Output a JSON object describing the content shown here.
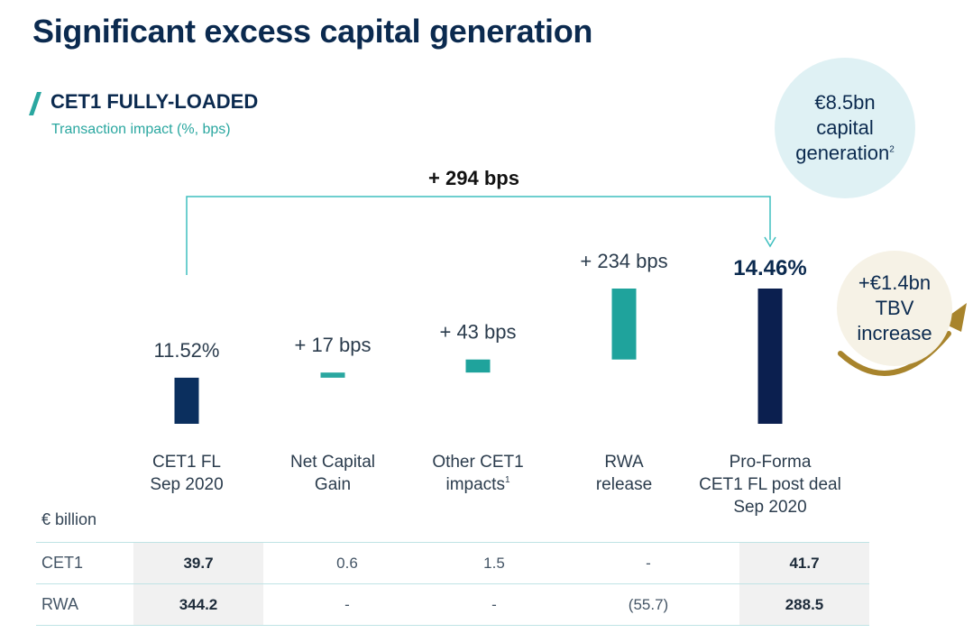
{
  "page": {
    "title": "Significant excess capital generation",
    "section": "CET1 FULLY-LOADED",
    "subtitle": "Transaction impact (%, bps)"
  },
  "bubbles": {
    "capital": {
      "line1": "€8.5bn",
      "line2": "capital",
      "line3": "generation",
      "sup": "2"
    },
    "tbv": {
      "line1": "+€1.4bn",
      "line2": "TBV",
      "line3": "increase"
    }
  },
  "chart_data": {
    "type": "bar",
    "subtype": "waterfall",
    "title": "CET1 FULLY-LOADED",
    "subtitle": "Transaction impact (%, bps)",
    "ylabel": "",
    "unit": "%",
    "ylim": [
      10.0,
      14.8
    ],
    "total_change_label": "+ 294 bps",
    "categories": [
      {
        "lines": [
          "CET1 FL",
          "Sep 2020"
        ],
        "sup": ""
      },
      {
        "lines": [
          "Net Capital",
          "Gain"
        ],
        "sup": ""
      },
      {
        "lines": [
          "Other CET1",
          "impacts"
        ],
        "sup": "1"
      },
      {
        "lines": [
          "RWA",
          "release"
        ],
        "sup": ""
      },
      {
        "lines": [
          "Pro-Forma",
          "CET1 FL post deal",
          "Sep 2020"
        ],
        "sup": ""
      }
    ],
    "bars": [
      {
        "kind": "total",
        "start": 10.0,
        "end": 11.52,
        "label": "11.52%",
        "color": "#0b2f5e"
      },
      {
        "kind": "delta",
        "start": 11.52,
        "end": 11.69,
        "label": "+ 17 bps",
        "color": "#2aa7a0"
      },
      {
        "kind": "delta",
        "start": 11.69,
        "end": 12.12,
        "label": "+ 43 bps",
        "color": "#1fa39c"
      },
      {
        "kind": "delta",
        "start": 12.12,
        "end": 14.46,
        "label": "+ 234 bps",
        "color": "#1fa39c"
      },
      {
        "kind": "total",
        "start": 10.0,
        "end": 14.46,
        "label": "14.46%",
        "color": "#0b1f4f"
      }
    ],
    "colors": {
      "bracket": "#3fbfbf",
      "tbv_arrow": "#a8842c"
    }
  },
  "table": {
    "unit_label": "€ billion",
    "rows": [
      {
        "label": "CET1",
        "cells": [
          "39.7",
          "0.6",
          "1.5",
          "-",
          "41.7"
        ]
      },
      {
        "label": "RWA",
        "cells": [
          "344.2",
          "-",
          "-",
          "(55.7)",
          "288.5"
        ]
      }
    ]
  }
}
